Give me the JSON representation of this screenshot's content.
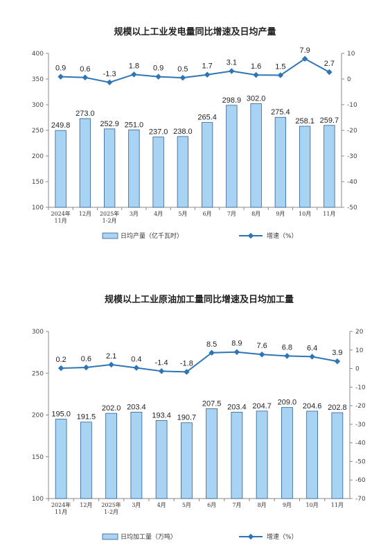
{
  "colors": {
    "bar_fill": "#a9d3f2",
    "bar_stroke": "#2f5f8f",
    "line": "#2e75b6",
    "axis": "#888888"
  },
  "chart_data": [
    {
      "type": "bar",
      "title": "规模以上工业发电量同比增速及日均产量",
      "categories": [
        [
          "2024年",
          "11月"
        ],
        [
          "12月"
        ],
        [
          "2025年",
          "1-2月"
        ],
        [
          "3月"
        ],
        [
          "4月"
        ],
        [
          "5月"
        ],
        [
          "6月"
        ],
        [
          "7月"
        ],
        [
          "8月"
        ],
        [
          "9月"
        ],
        [
          "10月"
        ],
        [
          "11月"
        ]
      ],
      "series": [
        {
          "name": "日均产量（亿千瓦时）",
          "type": "bar",
          "axis": "left",
          "values": [
            249.8,
            273.0,
            252.9,
            251.0,
            237.0,
            238.0,
            265.4,
            298.9,
            302.0,
            275.4,
            258.1,
            259.7
          ],
          "labels": [
            "249.8",
            "273.0",
            "252.9",
            "251.0",
            "237.0",
            "238.0",
            "265.4",
            "298.9",
            "302.0",
            "275.4",
            "258.1",
            "259.7"
          ]
        },
        {
          "name": "增速（%）",
          "type": "line",
          "axis": "right",
          "values": [
            0.9,
            0.6,
            -1.3,
            1.8,
            0.9,
            0.5,
            1.7,
            3.1,
            1.6,
            1.5,
            7.9,
            2.7
          ],
          "labels": [
            "0.9",
            "0.6",
            "-1.3",
            "1.8",
            "0.9",
            "0.5",
            "1.7",
            "3.1",
            "1.6",
            "1.5",
            "7.9",
            "2.7"
          ]
        }
      ],
      "ylim_left": [
        100,
        400
      ],
      "yticks_left": [
        "100",
        "150",
        "200",
        "250",
        "300",
        "350",
        "400"
      ],
      "ylim_right": [
        -50,
        10
      ],
      "yticks_right": [
        "-50",
        "-40",
        "-30",
        "-20",
        "-10",
        "0",
        "10"
      ],
      "legend": {
        "bar": "日均产量（亿千瓦时）",
        "line": "增速（%）",
        "placement": "bottom"
      },
      "grid": false
    },
    {
      "type": "bar",
      "title": "规模以上工业原油加工量同比增速及日均加工量",
      "categories": [
        [
          "2024年",
          "11月"
        ],
        [
          "12月"
        ],
        [
          "2025年",
          "1-2月"
        ],
        [
          "3月"
        ],
        [
          "4月"
        ],
        [
          "5月"
        ],
        [
          "6月"
        ],
        [
          "7月"
        ],
        [
          "8月"
        ],
        [
          "9月"
        ],
        [
          "10月"
        ],
        [
          "11月"
        ]
      ],
      "series": [
        {
          "name": "日均加工量（万吨）",
          "type": "bar",
          "axis": "left",
          "values": [
            195.0,
            191.5,
            202.0,
            203.4,
            193.4,
            190.7,
            207.5,
            203.4,
            204.7,
            209.0,
            204.6,
            202.8
          ],
          "labels": [
            "195.0",
            "191.5",
            "202.0",
            "203.4",
            "193.4",
            "190.7",
            "207.5",
            "203.4",
            "204.7",
            "209.0",
            "204.6",
            "202.8"
          ]
        },
        {
          "name": "增速（%）",
          "type": "line",
          "axis": "right",
          "values": [
            0.2,
            0.6,
            2.1,
            0.4,
            -1.4,
            -1.8,
            8.5,
            8.9,
            7.6,
            6.8,
            6.4,
            3.9
          ],
          "labels": [
            "0.2",
            "0.6",
            "2.1",
            "0.4",
            "-1.4",
            "-1.8",
            "8.5",
            "8.9",
            "7.6",
            "6.8",
            "6.4",
            "3.9"
          ]
        }
      ],
      "ylim_left": [
        100,
        300
      ],
      "yticks_left": [
        "100",
        "150",
        "200",
        "250",
        "300"
      ],
      "ylim_right": [
        -70,
        20
      ],
      "yticks_right": [
        "-70",
        "-60",
        "-50",
        "-40",
        "-30",
        "-20",
        "-10",
        "0",
        "10",
        "20"
      ],
      "legend": {
        "bar": "日均加工量（万吨）",
        "line": "增速（%）",
        "placement": "bottom"
      },
      "grid": false
    }
  ]
}
